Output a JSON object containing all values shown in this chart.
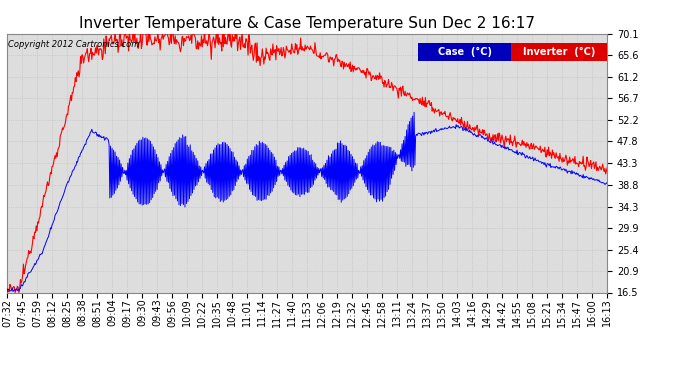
{
  "title": "Inverter Temperature & Case Temperature Sun Dec 2 16:17",
  "copyright": "Copyright 2012 Cartronics.com",
  "x_tick_labels": [
    "07:32",
    "07:45",
    "07:59",
    "08:12",
    "08:25",
    "08:38",
    "08:51",
    "09:04",
    "09:17",
    "09:30",
    "09:43",
    "09:56",
    "10:09",
    "10:22",
    "10:35",
    "10:48",
    "11:01",
    "11:14",
    "11:27",
    "11:40",
    "11:53",
    "12:06",
    "12:19",
    "12:32",
    "12:45",
    "12:58",
    "13:11",
    "13:24",
    "13:37",
    "13:50",
    "14:03",
    "14:16",
    "14:29",
    "14:42",
    "14:55",
    "15:08",
    "15:21",
    "15:34",
    "15:47",
    "16:00",
    "16:13"
  ],
  "y_tick_labels": [
    "16.5",
    "20.9",
    "25.4",
    "29.9",
    "34.3",
    "38.8",
    "43.3",
    "47.8",
    "52.2",
    "56.7",
    "61.2",
    "65.6",
    "70.1"
  ],
  "y_tick_values": [
    16.5,
    20.9,
    25.4,
    29.9,
    34.3,
    38.8,
    43.3,
    47.8,
    52.2,
    56.7,
    61.2,
    65.6,
    70.1
  ],
  "case_color": "#0000FF",
  "inverter_color": "#FF0000",
  "legend_case_bg": "#0000BB",
  "legend_inverter_bg": "#DD0000",
  "plot_bg_color": "#DDDDDD",
  "background_color": "#FFFFFF",
  "grid_color": "#BBBBBB",
  "title_fontsize": 11,
  "tick_fontsize": 7,
  "ylim": [
    16.5,
    70.1
  ],
  "n_points": 800
}
